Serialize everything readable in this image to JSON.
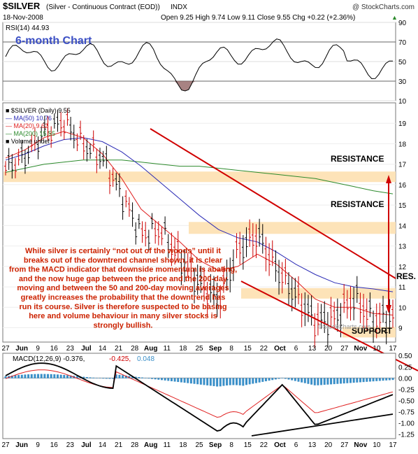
{
  "header": {
    "symbol": "$SILVER",
    "description": "(Silver - Continuous Contract (EOD))",
    "exchange": "INDX",
    "watermark": "@ StockCharts.com",
    "date": "18-Nov-2008",
    "quote": "Open 9.25  High 9.74  Low 9.11  Close 9.55  Chg +0.22 (+2.36%)",
    "quote_arrow": "▲"
  },
  "rsi_panel": {
    "label": "RSI(14) 44.93",
    "chart_title": "6-month Chart",
    "ticks": [
      "90",
      "70",
      "50",
      "30",
      "10"
    ]
  },
  "price_panel": {
    "legend": [
      {
        "text": "■ $SILVER (Daily) 9.55",
        "color": "#000000"
      },
      {
        "text": "— MA(50) 10.76",
        "color": "#2b2bb5"
      },
      {
        "text": "— MA(20) 9.62",
        "color": "#e02020"
      },
      {
        "text": "— MA(200) 15.55",
        "color": "#2c8a2c"
      },
      {
        "text": "■ Volume undef",
        "color": "#000000"
      }
    ],
    "y_ticks": [
      "19",
      "18",
      "17",
      "16",
      "15",
      "14",
      "13",
      "12",
      "11",
      "10",
      "9"
    ],
    "labels": {
      "resistance_1": "RESISTANCE",
      "resistance_2": "RESISTANCE",
      "res": "RES.",
      "support": "SUPPORT"
    },
    "watermark": "©StockCharts.com",
    "commentary": "While silver is certainly “not out of the woods” until it breaks out of the downtrend channel shown, it is clear from the MACD indicator that downside momentum is abating, and the now huge gap between the price and the 200-day moving and between the 50 and 200-day moving averages greatly increases the probability that the downtrend has run its course. Silver is therefore suspected to be basing here and volume behaviour in many silver stocks is strongly bullish."
  },
  "x_axis": {
    "labels": [
      {
        "text": "27",
        "bold": false
      },
      {
        "text": "Jun",
        "bold": true
      },
      {
        "text": "9",
        "bold": false
      },
      {
        "text": "16",
        "bold": false
      },
      {
        "text": "23",
        "bold": false
      },
      {
        "text": "Jul",
        "bold": true
      },
      {
        "text": "14",
        "bold": false
      },
      {
        "text": "21",
        "bold": false
      },
      {
        "text": "28",
        "bold": false
      },
      {
        "text": "Aug",
        "bold": true
      },
      {
        "text": "11",
        "bold": false
      },
      {
        "text": "18",
        "bold": false
      },
      {
        "text": "25",
        "bold": false
      },
      {
        "text": "Sep",
        "bold": true
      },
      {
        "text": "8",
        "bold": false
      },
      {
        "text": "15",
        "bold": false
      },
      {
        "text": "22",
        "bold": false
      },
      {
        "text": "Oct",
        "bold": true
      },
      {
        "text": "6",
        "bold": false
      },
      {
        "text": "13",
        "bold": false
      },
      {
        "text": "20",
        "bold": false
      },
      {
        "text": "27",
        "bold": false
      },
      {
        "text": "Nov",
        "bold": true
      },
      {
        "text": "10",
        "bold": false
      },
      {
        "text": "17",
        "bold": false
      }
    ]
  },
  "macd_panel": {
    "label_prefix": "MACD(12,26,9) -0.376,",
    "signal_value": "-0.425,",
    "hist_value": "0.048",
    "y_ticks": [
      "0.50",
      "0.25",
      "0.00",
      "-0.25",
      "-0.50",
      "-0.75",
      "-1.00",
      "-1.25"
    ]
  },
  "colors": {
    "price_bar": "#cc0000",
    "ma50": "#2b2bb5",
    "ma20": "#e02020",
    "ma200": "#2c8a2c",
    "band": "#fde3b8",
    "channel": "#d00000",
    "commentary": "#cc2200",
    "macd_hist": "#3a8fc8",
    "title": "#3b4fc4"
  },
  "chart_data": {
    "type": "line",
    "title": "$SILVER (Silver - Continuous Contract (EOD)) INDX — 6-month Chart",
    "x": [
      "Jun 27",
      "Jul 7",
      "Jul 14",
      "Jul 21",
      "Jul 28",
      "Aug 4",
      "Aug 11",
      "Aug 18",
      "Aug 25",
      "Sep 2",
      "Sep 8",
      "Sep 15",
      "Sep 22",
      "Oct 1",
      "Oct 6",
      "Oct 13",
      "Oct 20",
      "Oct 27",
      "Nov 3",
      "Nov 10",
      "Nov 17"
    ],
    "series": [
      {
        "name": "$SILVER (Daily)",
        "values": [
          16.8,
          17.4,
          18.6,
          19.1,
          18.0,
          17.3,
          15.5,
          13.6,
          13.8,
          12.4,
          11.2,
          10.4,
          12.8,
          13.6,
          11.9,
          10.6,
          9.3,
          9.5,
          10.5,
          9.4,
          9.55
        ]
      },
      {
        "name": "MA(50)",
        "values": [
          17.2,
          17.5,
          17.9,
          18.2,
          18.3,
          18.1,
          17.6,
          16.9,
          16.1,
          15.3,
          14.5,
          13.8,
          13.4,
          13.2,
          12.7,
          12.1,
          11.6,
          11.2,
          11.0,
          10.9,
          10.76
        ]
      },
      {
        "name": "MA(20)",
        "values": [
          17.3,
          17.7,
          18.3,
          18.6,
          18.3,
          17.5,
          16.3,
          14.8,
          14.0,
          13.2,
          12.3,
          11.8,
          12.0,
          12.6,
          12.1,
          11.3,
          10.4,
          10.0,
          10.0,
          9.7,
          9.62
        ]
      },
      {
        "name": "MA(200)",
        "values": [
          16.6,
          16.8,
          17.0,
          17.1,
          17.2,
          17.2,
          17.2,
          17.1,
          17.0,
          16.9,
          16.9,
          16.8,
          16.7,
          16.6,
          16.5,
          16.4,
          16.3,
          16.1,
          15.9,
          15.7,
          15.55
        ]
      }
    ],
    "ylim": [
      8.3,
      20
    ],
    "resistance_levels": [
      16.4,
      13.9,
      10.7
    ],
    "support_level": 8.8,
    "rsi": {
      "name": "RSI(14)",
      "last": 44.93,
      "ylim": [
        10,
        90
      ]
    },
    "macd": {
      "last": -0.376,
      "signal": -0.425,
      "histogram": 0.048,
      "ylim": [
        -1.35,
        0.55
      ]
    }
  }
}
